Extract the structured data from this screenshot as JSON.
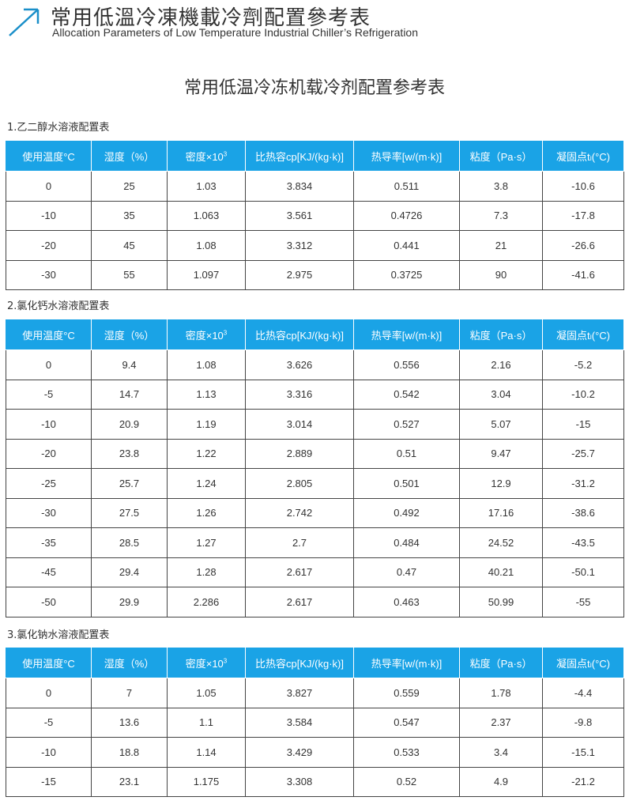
{
  "banner": {
    "cn_title": "常用低溫冷凍機載冷劑配置參考表",
    "en_title": "Allocation Parameters of Low Temperature Industrial Chiller’s Refrigeration",
    "icon": "arrow-up-right-icon",
    "accent": "#1a8fc9"
  },
  "main_title": "常用低温冷冻机载冷剂配置参考表",
  "header_color": "#1aa3e6",
  "columns": [
    "使用温度°C",
    "湿度（%）",
    "密度×10",
    "比热容cp[KJ/(kg·k)]",
    "热导率[w/(m·k)]",
    "粘度（Pa·s）",
    "凝固点tₗ(°C)"
  ],
  "density_exponent": "3",
  "tables": [
    {
      "label": "1.乙二醇水溶液配置表",
      "rows": [
        [
          "0",
          "25",
          "1.03",
          "3.834",
          "0.511",
          "3.8",
          "-10.6"
        ],
        [
          "-10",
          "35",
          "1.063",
          "3.561",
          "0.4726",
          "7.3",
          "-17.8"
        ],
        [
          "-20",
          "45",
          "1.08",
          "3.312",
          "0.441",
          "21",
          "-26.6"
        ],
        [
          "-30",
          "55",
          "1.097",
          "2.975",
          "0.3725",
          "90",
          "-41.6"
        ]
      ]
    },
    {
      "label": "2.氯化钙水溶液配置表",
      "rows": [
        [
          "0",
          "9.4",
          "1.08",
          "3.626",
          "0.556",
          "2.16",
          "-5.2"
        ],
        [
          "-5",
          "14.7",
          "1.13",
          "3.316",
          "0.542",
          "3.04",
          "-10.2"
        ],
        [
          "-10",
          "20.9",
          "1.19",
          "3.014",
          "0.527",
          "5.07",
          "-15"
        ],
        [
          "-20",
          "23.8",
          "1.22",
          "2.889",
          "0.51",
          "9.47",
          "-25.7"
        ],
        [
          "-25",
          "25.7",
          "1.24",
          "2.805",
          "0.501",
          "12.9",
          "-31.2"
        ],
        [
          "-30",
          "27.5",
          "1.26",
          "2.742",
          "0.492",
          "17.16",
          "-38.6"
        ],
        [
          "-35",
          "28.5",
          "1.27",
          "2.7",
          "0.484",
          "24.52",
          "-43.5"
        ],
        [
          "-45",
          "29.4",
          "1.28",
          "2.617",
          "0.47",
          "40.21",
          "-50.1"
        ],
        [
          "-50",
          "29.9",
          "2.286",
          "2.617",
          "0.463",
          "50.99",
          "-55"
        ]
      ]
    },
    {
      "label": "3.氯化钠水溶液配置表",
      "rows": [
        [
          "0",
          "7",
          "1.05",
          "3.827",
          "0.559",
          "1.78",
          "-4.4"
        ],
        [
          "-5",
          "13.6",
          "1.1",
          "3.584",
          "0.547",
          "2.37",
          "-9.8"
        ],
        [
          "-10",
          "18.8",
          "1.14",
          "3.429",
          "0.533",
          "3.4",
          "-15.1"
        ],
        [
          "-15",
          "23.1",
          "1.175",
          "3.308",
          "0.52",
          "4.9",
          "-21.2"
        ]
      ]
    }
  ]
}
